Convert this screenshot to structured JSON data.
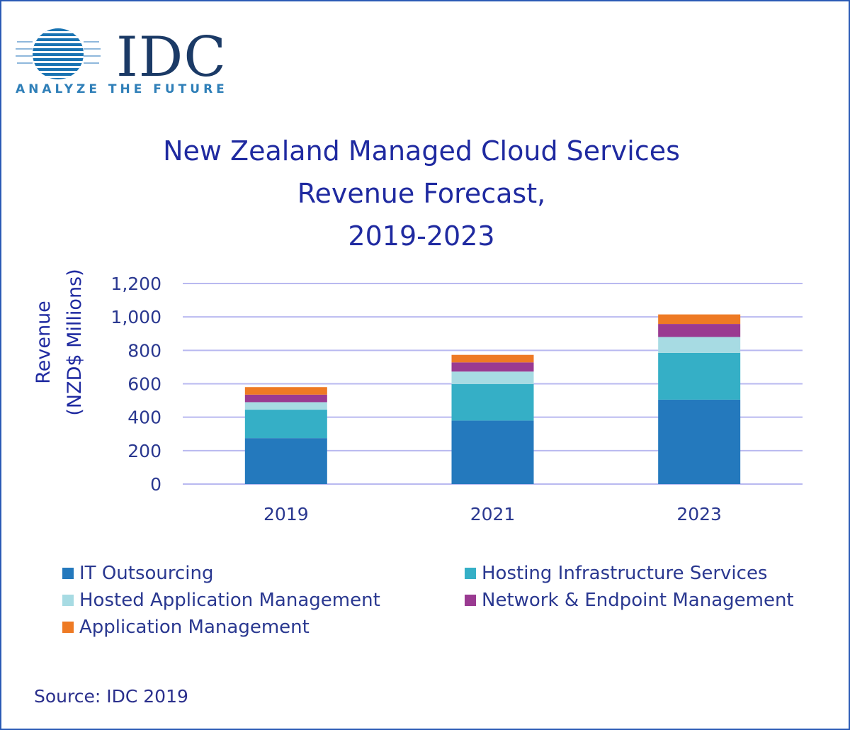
{
  "logo": {
    "word": "IDC",
    "tagline": "ANALYZE THE FUTURE"
  },
  "source": "Source: IDC 2019",
  "colors": {
    "title": "#1f2aa0",
    "axis_text": "#2a3890",
    "gridline": "#b9b9f0",
    "border": "#2a5bb5"
  },
  "chart_data": {
    "type": "bar",
    "stacked": true,
    "title_lines": [
      "New Zealand Managed Cloud Services",
      "Revenue Forecast,",
      "2019-2023"
    ],
    "ylabel_lines": [
      "Revenue",
      "(NZD$ Millions)"
    ],
    "xlabel": "",
    "categories": [
      "2019",
      "2021",
      "2023"
    ],
    "ylim": [
      0,
      1200
    ],
    "yticks": [
      0,
      200,
      400,
      600,
      800,
      1000,
      1200
    ],
    "ytick_labels": [
      "0",
      "200",
      "400",
      "600",
      "800",
      "1,000",
      "1,200"
    ],
    "grid": true,
    "legend_position": "bottom",
    "series": [
      {
        "name": "IT Outsourcing",
        "color": "#2479bd",
        "values": [
          275,
          380,
          505
        ]
      },
      {
        "name": "Hosting Infrastructure Services",
        "color": "#35afc6",
        "values": [
          170,
          218,
          280
        ]
      },
      {
        "name": "Hosted Application Management",
        "color": "#a7dbe3",
        "values": [
          45,
          75,
          95
        ]
      },
      {
        "name": "Network & Endpoint Management",
        "color": "#9a3a91",
        "values": [
          45,
          55,
          78
        ]
      },
      {
        "name": "Application Management",
        "color": "#ee7a24",
        "values": [
          45,
          45,
          57
        ]
      }
    ]
  }
}
